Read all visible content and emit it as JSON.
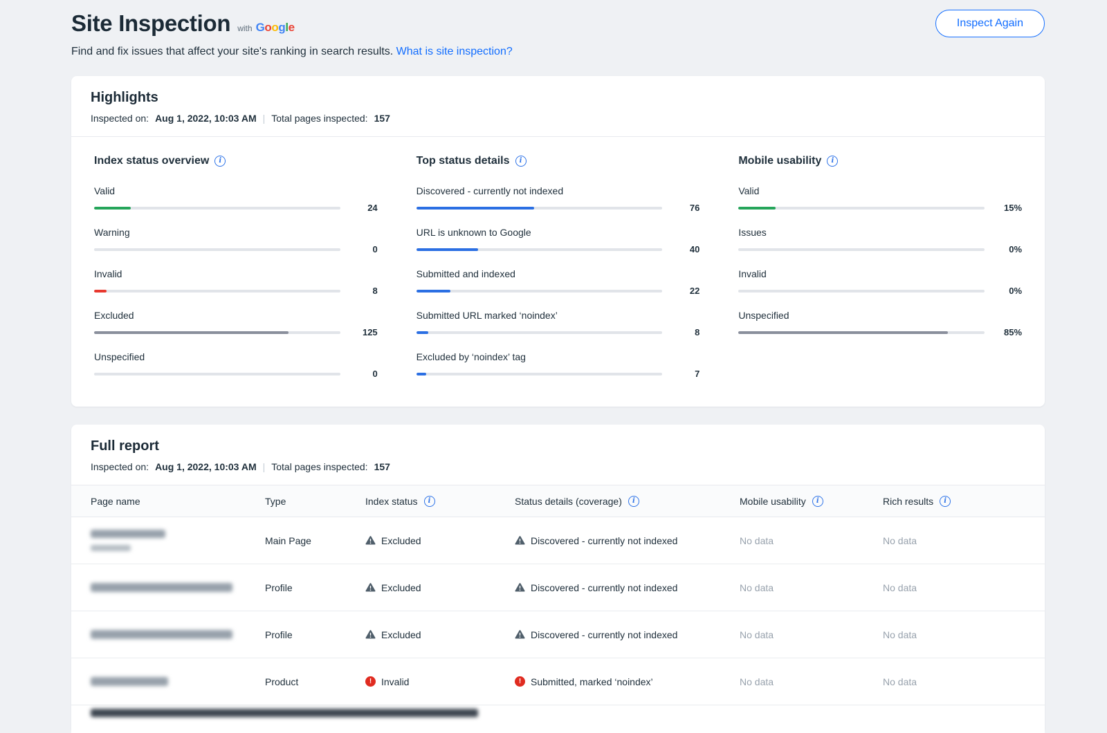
{
  "header": {
    "title": "Site Inspection",
    "with_label": "with",
    "google_letters": [
      {
        "ch": "G",
        "color": "#4285F4"
      },
      {
        "ch": "o",
        "color": "#EA4335"
      },
      {
        "ch": "o",
        "color": "#FBBC05"
      },
      {
        "ch": "g",
        "color": "#4285F4"
      },
      {
        "ch": "l",
        "color": "#34A853"
      },
      {
        "ch": "e",
        "color": "#EA4335"
      }
    ],
    "subtitle": "Find and fix issues that affect your site's ranking in search results.",
    "subtitle_link": "What is site inspection?",
    "inspect_again": "Inspect Again"
  },
  "highlights": {
    "title": "Highlights",
    "inspected_on_label": "Inspected on:",
    "inspected_on_value": "Aug 1, 2022, 10:03 AM",
    "separator": "|",
    "total_label": "Total pages inspected:",
    "total_value": "157",
    "panels": [
      {
        "title": "Index status overview",
        "items": [
          {
            "label": "Valid",
            "value": "24",
            "pct": 15,
            "color": "#25a55a"
          },
          {
            "label": "Warning",
            "value": "0",
            "pct": 0,
            "color": "#25a55a"
          },
          {
            "label": "Invalid",
            "value": "8",
            "pct": 5,
            "color": "#e8382e"
          },
          {
            "label": "Excluded",
            "value": "125",
            "pct": 79,
            "color": "#8a8f9c"
          },
          {
            "label": "Unspecified",
            "value": "0",
            "pct": 0,
            "color": "#8a8f9c"
          }
        ]
      },
      {
        "title": "Top status details",
        "items": [
          {
            "label": "Discovered - currently not indexed",
            "value": "76",
            "pct": 48,
            "color": "#2b6fe3"
          },
          {
            "label": "URL is unknown to Google",
            "value": "40",
            "pct": 25,
            "color": "#2b6fe3"
          },
          {
            "label": "Submitted and indexed",
            "value": "22",
            "pct": 14,
            "color": "#2b6fe3"
          },
          {
            "label": "Submitted URL marked ‘noindex’",
            "value": "8",
            "pct": 5,
            "color": "#2b6fe3"
          },
          {
            "label": "Excluded by ‘noindex’ tag",
            "value": "7",
            "pct": 4,
            "color": "#2b6fe3"
          }
        ]
      },
      {
        "title": "Mobile usability",
        "items": [
          {
            "label": "Valid",
            "value": "15%",
            "pct": 15,
            "color": "#25a55a"
          },
          {
            "label": "Issues",
            "value": "0%",
            "pct": 0,
            "color": "#25a55a"
          },
          {
            "label": "Invalid",
            "value": "0%",
            "pct": 0,
            "color": "#e8382e"
          },
          {
            "label": "Unspecified",
            "value": "85%",
            "pct": 85,
            "color": "#8a8f9c"
          }
        ]
      }
    ]
  },
  "report": {
    "title": "Full report",
    "inspected_on_label": "Inspected on:",
    "inspected_on_value": "Aug 1, 2022, 10:03 AM",
    "separator": "|",
    "total_label": "Total pages inspected:",
    "total_value": "157",
    "columns": [
      "Page name",
      "Type",
      "Index status",
      "Status details (coverage)",
      "Mobile usability",
      "Rich results"
    ],
    "rows": [
      {
        "type": "Main Page",
        "index_icon": "warning-icon",
        "index_status": "Excluded",
        "status_icon": "warning-icon",
        "status_details": "Discovered - currently not indexed",
        "mobile_usability": "No data",
        "rich_results": "No data"
      },
      {
        "type": "Profile",
        "index_icon": "warning-icon",
        "index_status": "Excluded",
        "status_icon": "warning-icon",
        "status_details": "Discovered - currently not indexed",
        "mobile_usability": "No data",
        "rich_results": "No data"
      },
      {
        "type": "Profile",
        "index_icon": "warning-icon",
        "index_status": "Excluded",
        "status_icon": "warning-icon",
        "status_details": "Discovered - currently not indexed",
        "mobile_usability": "No data",
        "rich_results": "No data"
      },
      {
        "type": "Product",
        "index_icon": "error-icon",
        "index_status": "Invalid",
        "status_icon": "error-icon",
        "status_details": "Submitted, marked ‘noindex’",
        "mobile_usability": "No data",
        "rich_results": "No data"
      }
    ]
  }
}
